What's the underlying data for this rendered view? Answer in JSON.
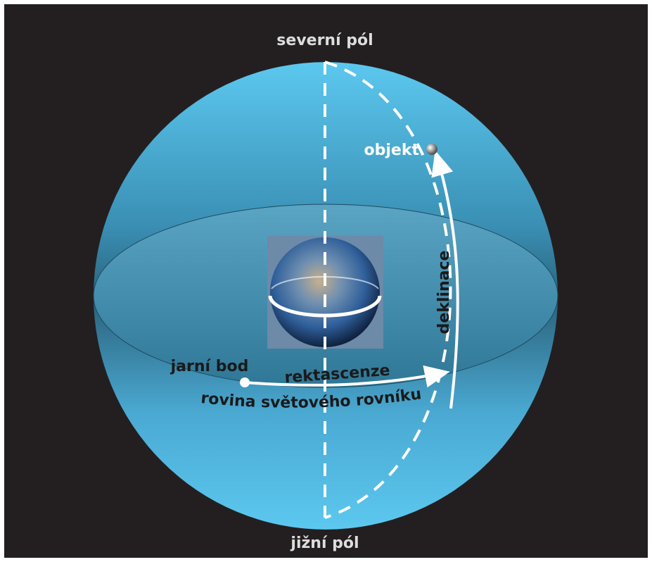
{
  "labels": {
    "north_pole": "severní pól",
    "south_pole": "jižní pól",
    "object": "objekt",
    "declination": "deklinace",
    "vernal_point": "jarní bod",
    "right_ascension": "rektascenze",
    "equator_plane": "rovina světového rovníku"
  }
}
